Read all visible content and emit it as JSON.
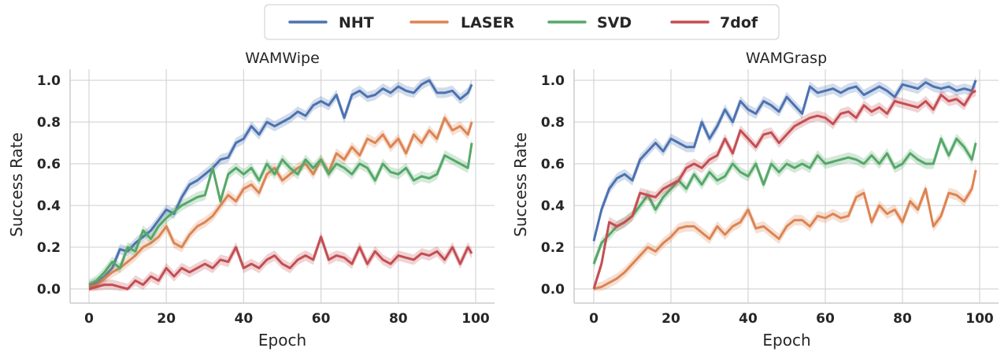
{
  "legend": {
    "placement": "top-center",
    "entries": [
      {
        "name": "NHT",
        "color": "#4c72b0"
      },
      {
        "name": "LASER",
        "color": "#dd8452"
      },
      {
        "name": "SVD",
        "color": "#55a868"
      },
      {
        "name": "7dof",
        "color": "#c44e52"
      }
    ]
  },
  "chart_data": [
    {
      "type": "line",
      "title": "WAMWipe",
      "xlabel": "Epoch",
      "ylabel": "Success Rate",
      "xlim": [
        0,
        100
      ],
      "ylim": [
        0,
        1
      ],
      "xticks": [
        "0",
        "20",
        "40",
        "60",
        "80",
        "100"
      ],
      "yticks": [
        "0.0",
        "0.2",
        "0.4",
        "0.6",
        "0.8",
        "1.0"
      ],
      "grid": true,
      "x": [
        0,
        2,
        4,
        6,
        8,
        10,
        12,
        14,
        16,
        18,
        20,
        22,
        24,
        26,
        28,
        30,
        32,
        34,
        36,
        38,
        40,
        42,
        44,
        46,
        48,
        50,
        52,
        54,
        56,
        58,
        60,
        62,
        64,
        66,
        68,
        70,
        72,
        74,
        76,
        78,
        80,
        82,
        84,
        86,
        88,
        90,
        92,
        94,
        96,
        98,
        99
      ],
      "series": [
        {
          "name": "NHT",
          "values": [
            0.01,
            0.03,
            0.06,
            0.1,
            0.19,
            0.18,
            0.22,
            0.25,
            0.28,
            0.33,
            0.38,
            0.36,
            0.44,
            0.5,
            0.52,
            0.55,
            0.58,
            0.62,
            0.63,
            0.7,
            0.72,
            0.78,
            0.74,
            0.8,
            0.78,
            0.8,
            0.82,
            0.85,
            0.83,
            0.88,
            0.9,
            0.88,
            0.93,
            0.82,
            0.93,
            0.95,
            0.92,
            0.93,
            0.96,
            0.94,
            0.97,
            0.95,
            0.94,
            0.98,
            1.0,
            0.94,
            0.94,
            0.95,
            0.91,
            0.94,
            0.98
          ]
        },
        {
          "name": "LASER",
          "values": [
            0.01,
            0.02,
            0.05,
            0.08,
            0.1,
            0.13,
            0.16,
            0.2,
            0.22,
            0.25,
            0.3,
            0.22,
            0.2,
            0.26,
            0.3,
            0.32,
            0.35,
            0.4,
            0.45,
            0.42,
            0.48,
            0.5,
            0.46,
            0.55,
            0.58,
            0.52,
            0.55,
            0.58,
            0.6,
            0.55,
            0.62,
            0.56,
            0.65,
            0.62,
            0.68,
            0.64,
            0.72,
            0.7,
            0.74,
            0.68,
            0.72,
            0.65,
            0.74,
            0.7,
            0.76,
            0.72,
            0.82,
            0.76,
            0.78,
            0.74,
            0.8
          ]
        },
        {
          "name": "SVD",
          "values": [
            0.02,
            0.04,
            0.08,
            0.13,
            0.1,
            0.2,
            0.18,
            0.28,
            0.24,
            0.3,
            0.34,
            0.37,
            0.4,
            0.42,
            0.44,
            0.45,
            0.58,
            0.42,
            0.55,
            0.58,
            0.55,
            0.58,
            0.52,
            0.6,
            0.55,
            0.62,
            0.58,
            0.55,
            0.62,
            0.58,
            0.62,
            0.55,
            0.6,
            0.58,
            0.55,
            0.6,
            0.58,
            0.52,
            0.6,
            0.56,
            0.55,
            0.58,
            0.52,
            0.54,
            0.53,
            0.55,
            0.64,
            0.62,
            0.6,
            0.58,
            0.7
          ]
        },
        {
          "name": "7dof",
          "values": [
            0.0,
            0.01,
            0.02,
            0.02,
            0.01,
            0.0,
            0.04,
            0.02,
            0.06,
            0.04,
            0.1,
            0.06,
            0.1,
            0.08,
            0.1,
            0.12,
            0.1,
            0.14,
            0.13,
            0.2,
            0.1,
            0.12,
            0.1,
            0.14,
            0.16,
            0.12,
            0.1,
            0.14,
            0.16,
            0.14,
            0.25,
            0.14,
            0.16,
            0.15,
            0.12,
            0.2,
            0.12,
            0.18,
            0.14,
            0.12,
            0.16,
            0.15,
            0.14,
            0.17,
            0.16,
            0.18,
            0.14,
            0.2,
            0.12,
            0.2,
            0.17
          ]
        }
      ]
    },
    {
      "type": "line",
      "title": "WAMGrasp",
      "xlabel": "Epoch",
      "ylabel": "Success Rate",
      "xlim": [
        0,
        100
      ],
      "ylim": [
        0,
        1
      ],
      "xticks": [
        "0",
        "20",
        "40",
        "60",
        "80",
        "100"
      ],
      "yticks": [
        "0.0",
        "0.2",
        "0.4",
        "0.6",
        "0.8",
        "1.0"
      ],
      "grid": true,
      "x": [
        0,
        2,
        4,
        6,
        8,
        10,
        12,
        14,
        16,
        18,
        20,
        22,
        24,
        26,
        28,
        30,
        32,
        34,
        36,
        38,
        40,
        42,
        44,
        46,
        48,
        50,
        52,
        54,
        56,
        58,
        60,
        62,
        64,
        66,
        68,
        70,
        72,
        74,
        76,
        78,
        80,
        82,
        84,
        86,
        88,
        90,
        92,
        94,
        96,
        98,
        99
      ],
      "series": [
        {
          "name": "NHT",
          "values": [
            0.23,
            0.38,
            0.48,
            0.53,
            0.55,
            0.52,
            0.62,
            0.66,
            0.7,
            0.66,
            0.72,
            0.7,
            0.68,
            0.68,
            0.8,
            0.72,
            0.78,
            0.86,
            0.8,
            0.9,
            0.86,
            0.84,
            0.9,
            0.88,
            0.85,
            0.92,
            0.88,
            0.84,
            0.97,
            0.94,
            0.95,
            0.96,
            0.94,
            0.96,
            0.97,
            0.93,
            0.95,
            0.97,
            0.95,
            0.92,
            0.98,
            0.97,
            0.96,
            0.99,
            0.97,
            0.96,
            0.97,
            0.95,
            0.96,
            0.95,
            1.0
          ]
        },
        {
          "name": "LASER",
          "values": [
            0.0,
            0.01,
            0.03,
            0.05,
            0.08,
            0.12,
            0.16,
            0.2,
            0.18,
            0.22,
            0.25,
            0.29,
            0.3,
            0.3,
            0.27,
            0.24,
            0.3,
            0.26,
            0.3,
            0.32,
            0.38,
            0.29,
            0.3,
            0.27,
            0.24,
            0.3,
            0.33,
            0.33,
            0.3,
            0.35,
            0.34,
            0.36,
            0.34,
            0.35,
            0.44,
            0.46,
            0.32,
            0.4,
            0.36,
            0.38,
            0.32,
            0.42,
            0.38,
            0.48,
            0.3,
            0.35,
            0.46,
            0.45,
            0.42,
            0.48,
            0.57
          ]
        },
        {
          "name": "SVD",
          "values": [
            0.12,
            0.22,
            0.26,
            0.3,
            0.32,
            0.35,
            0.4,
            0.45,
            0.38,
            0.44,
            0.48,
            0.52,
            0.48,
            0.55,
            0.5,
            0.56,
            0.52,
            0.54,
            0.6,
            0.56,
            0.54,
            0.6,
            0.5,
            0.6,
            0.56,
            0.6,
            0.58,
            0.6,
            0.58,
            0.64,
            0.6,
            0.61,
            0.62,
            0.63,
            0.62,
            0.6,
            0.64,
            0.6,
            0.65,
            0.58,
            0.6,
            0.65,
            0.62,
            0.6,
            0.6,
            0.72,
            0.64,
            0.72,
            0.68,
            0.62,
            0.7
          ]
        },
        {
          "name": "7dof",
          "values": [
            0.0,
            0.12,
            0.32,
            0.3,
            0.32,
            0.35,
            0.46,
            0.45,
            0.44,
            0.48,
            0.5,
            0.52,
            0.58,
            0.6,
            0.58,
            0.62,
            0.64,
            0.72,
            0.65,
            0.76,
            0.72,
            0.68,
            0.74,
            0.75,
            0.7,
            0.74,
            0.78,
            0.8,
            0.82,
            0.83,
            0.82,
            0.79,
            0.84,
            0.85,
            0.82,
            0.88,
            0.85,
            0.87,
            0.84,
            0.9,
            0.89,
            0.88,
            0.87,
            0.9,
            0.86,
            0.93,
            0.9,
            0.91,
            0.88,
            0.94,
            0.95
          ]
        }
      ]
    }
  ]
}
